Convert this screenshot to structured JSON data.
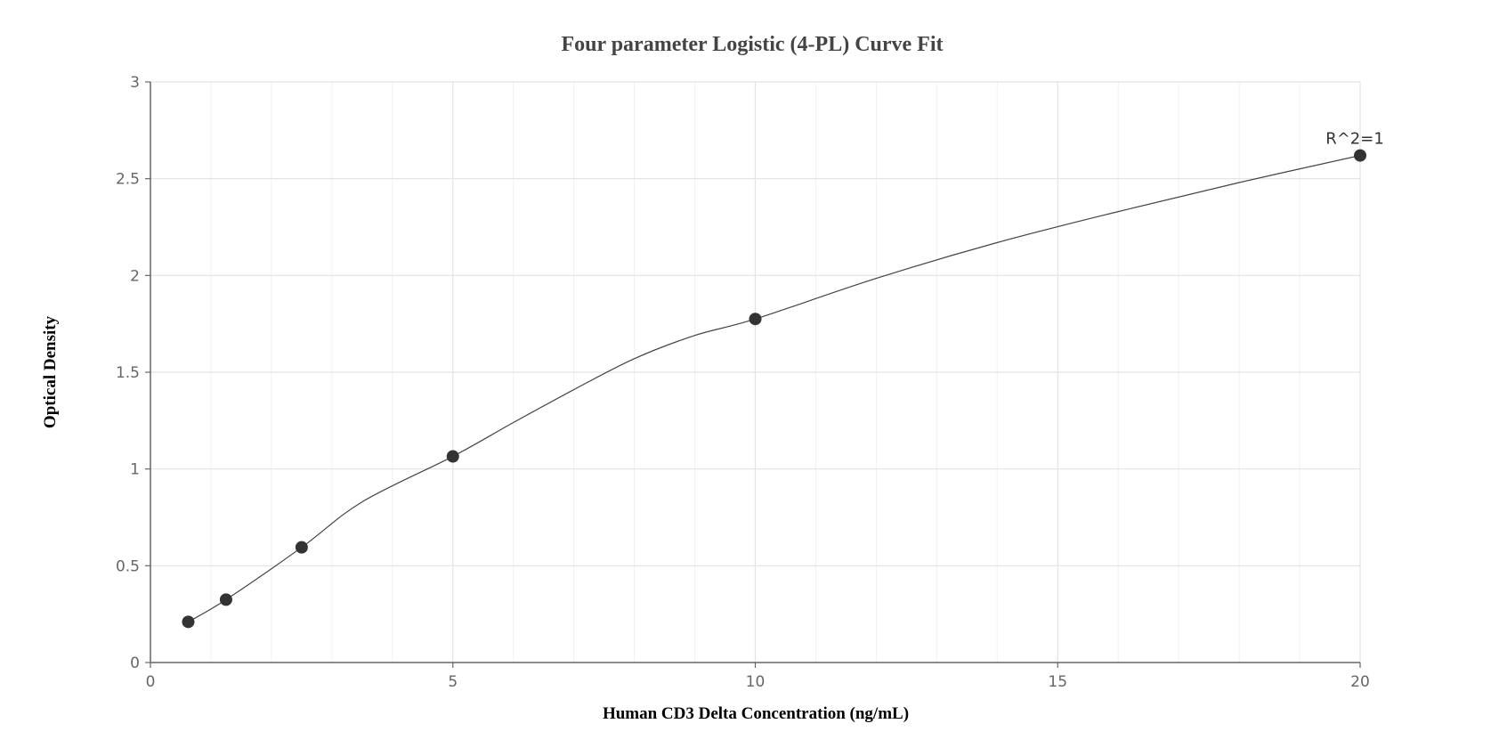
{
  "chart_data": {
    "type": "scatter",
    "title": "Four parameter Logistic (4-PL) Curve Fit",
    "xlabel": "Human CD3 Delta Concentration (ng/mL)",
    "ylabel": "Optical Density",
    "xlim": [
      0,
      20
    ],
    "ylim": [
      0,
      3
    ],
    "x_ticks": [
      0,
      5,
      10,
      15,
      20
    ],
    "x_tick_labels": [
      "0",
      "5",
      "10",
      "15",
      "20"
    ],
    "y_ticks": [
      0,
      0.5,
      1,
      1.5,
      2,
      2.5,
      3
    ],
    "y_tick_labels": [
      "0",
      "0.5",
      "1",
      "1.5",
      "2",
      "2.5",
      "3"
    ],
    "x_minor_step": 1,
    "grid": true,
    "points": {
      "x": [
        0.625,
        1.25,
        2.5,
        5,
        10,
        20
      ],
      "y": [
        0.21,
        0.325,
        0.595,
        1.065,
        1.775,
        2.62
      ]
    },
    "fit_curve": {
      "x": [
        0.625,
        1.25,
        2.5,
        3.5,
        5,
        6,
        7,
        8,
        9,
        10,
        12,
        14,
        16,
        18,
        20
      ],
      "y": [
        0.21,
        0.325,
        0.595,
        0.83,
        1.065,
        1.24,
        1.41,
        1.57,
        1.69,
        1.775,
        1.985,
        2.17,
        2.33,
        2.48,
        2.62
      ]
    },
    "annotation": {
      "text": "R^2=1",
      "x": 20,
      "y": 2.62
    },
    "colors": {
      "marker": "#333333",
      "line": "#444444",
      "grid_major": "#e0e3e8",
      "grid_minor": "#f0f1f4",
      "axis": "#666666"
    }
  }
}
